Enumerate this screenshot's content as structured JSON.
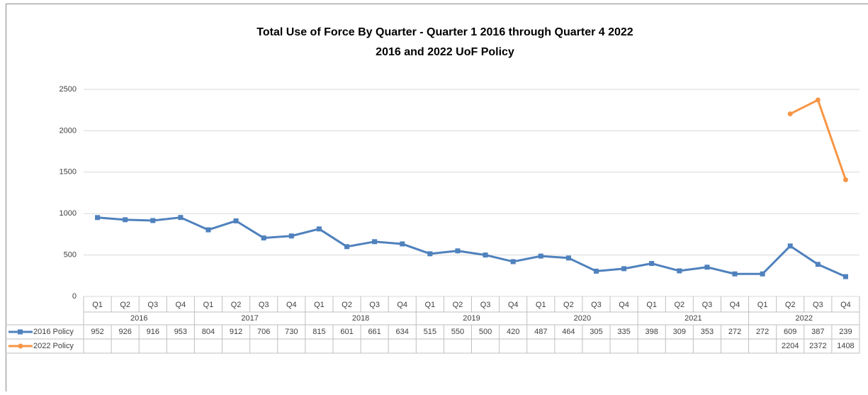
{
  "chart_data": {
    "type": "line",
    "title": "Total Use of Force By Quarter - Quarter 1 2016 through Quarter 4 2022",
    "subtitle": "2016 and 2022 UoF Policy",
    "categories": [
      "Q1",
      "Q2",
      "Q3",
      "Q4",
      "Q1",
      "Q2",
      "Q3",
      "Q4",
      "Q1",
      "Q2",
      "Q3",
      "Q4",
      "Q1",
      "Q2",
      "Q3",
      "Q4",
      "Q1",
      "Q2",
      "Q3",
      "Q4",
      "Q1",
      "Q2",
      "Q3",
      "Q4",
      "Q1",
      "Q2",
      "Q3",
      "Q4"
    ],
    "groups": [
      "2016",
      "2017",
      "2018",
      "2019",
      "2020",
      "2021",
      "2022"
    ],
    "series": [
      {
        "name": "2016 Policy",
        "color": "#4f81bd",
        "marker": "square",
        "values": [
          952,
          926,
          916,
          953,
          804,
          912,
          706,
          730,
          815,
          601,
          661,
          634,
          515,
          550,
          500,
          420,
          487,
          464,
          305,
          335,
          398,
          309,
          353,
          272,
          272,
          609,
          387,
          239
        ]
      },
      {
        "name": "2022 Policy",
        "color": "#f79646",
        "marker": "circle",
        "values": [
          null,
          null,
          null,
          null,
          null,
          null,
          null,
          null,
          null,
          null,
          null,
          null,
          null,
          null,
          null,
          null,
          null,
          null,
          null,
          null,
          null,
          null,
          null,
          null,
          null,
          2204,
          2372,
          1408
        ]
      }
    ],
    "ylim": [
      0,
      2500
    ],
    "yticks": [
      0,
      500,
      1000,
      1500,
      2000,
      2500
    ],
    "grid": true,
    "data_table": true
  }
}
